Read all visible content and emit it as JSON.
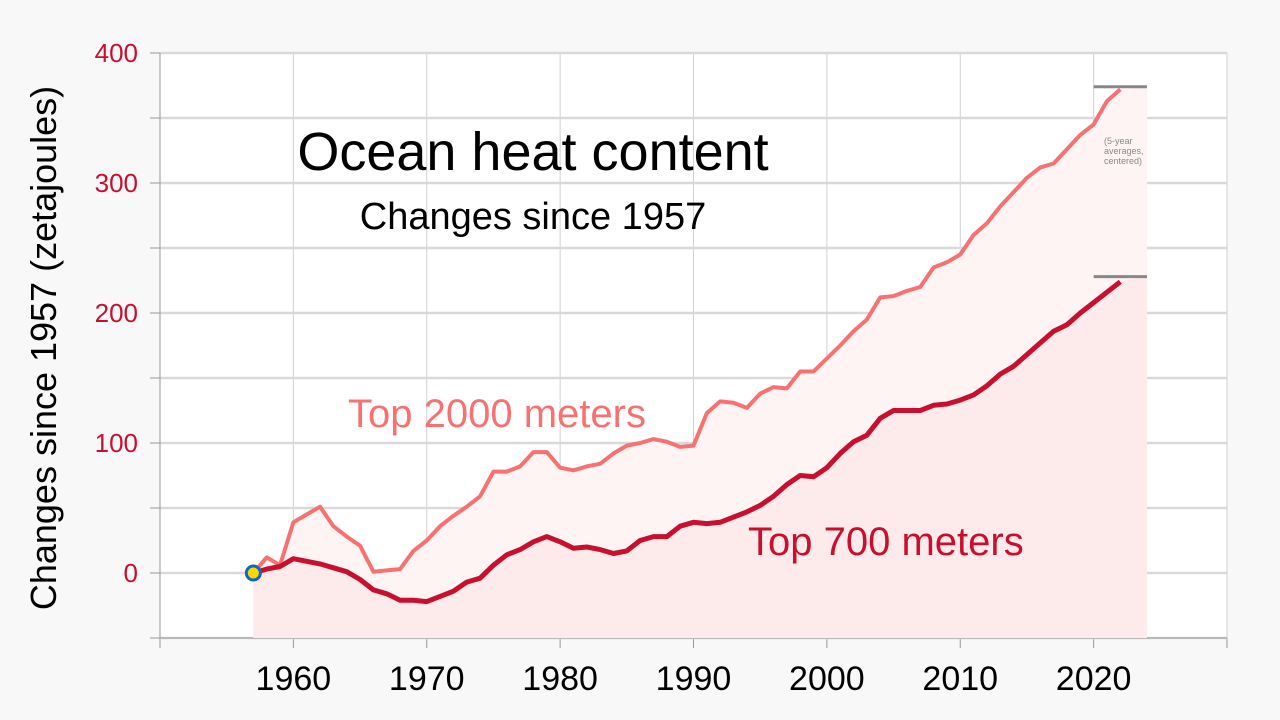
{
  "chart_data": {
    "type": "line",
    "title": "Ocean heat content",
    "subtitle": "Changes since 1957",
    "ylabel": "Changes since 1957 (zetajoules)",
    "xlabel": "",
    "xlim": [
      1950,
      2030
    ],
    "ylim": [
      -50,
      400
    ],
    "x_ticks": [
      1960,
      1970,
      1980,
      1990,
      2000,
      2010,
      2020
    ],
    "y_ticks": [
      0,
      100,
      200,
      300,
      400
    ],
    "y_tick_color": "#c8102e",
    "grid": true,
    "legend": "inline labels",
    "annotation": "(5-year averages, centered)",
    "series": [
      {
        "name": "Top 2000 meters",
        "color": "#f87171",
        "x": [
          1957,
          1958,
          1959,
          1960,
          1961,
          1962,
          1963,
          1964,
          1965,
          1966,
          1967,
          1968,
          1969,
          1970,
          1971,
          1972,
          1973,
          1974,
          1975,
          1976,
          1977,
          1978,
          1979,
          1980,
          1981,
          1982,
          1983,
          1984,
          1985,
          1986,
          1987,
          1988,
          1989,
          1990,
          1991,
          1992,
          1993,
          1994,
          1995,
          1996,
          1997,
          1998,
          1999,
          2000,
          2001,
          2002,
          2003,
          2004,
          2005,
          2006,
          2007,
          2008,
          2009,
          2010,
          2011,
          2012,
          2013,
          2014,
          2015,
          2016,
          2017,
          2018,
          2019,
          2020,
          2021,
          2022
        ],
        "values": [
          0,
          12,
          6,
          39,
          45,
          51,
          36,
          28,
          21,
          1,
          2,
          3,
          17,
          25,
          36,
          44,
          51,
          59,
          78,
          78,
          82,
          93,
          93,
          81,
          79,
          82,
          84,
          92,
          98,
          100,
          103,
          101,
          97,
          98,
          123,
          132,
          131,
          127,
          138,
          143,
          142,
          155,
          155,
          165,
          175,
          186,
          195,
          212,
          213,
          217,
          220,
          235,
          239,
          245,
          260,
          269,
          282,
          293,
          304,
          312,
          315,
          326,
          337,
          345,
          363,
          372
        ],
        "end_marker": 374
      },
      {
        "name": "Top 700 meters",
        "color": "#c8102e",
        "x": [
          1957,
          1958,
          1959,
          1960,
          1961,
          1962,
          1963,
          1964,
          1965,
          1966,
          1967,
          1968,
          1969,
          1970,
          1971,
          1972,
          1973,
          1974,
          1975,
          1976,
          1977,
          1978,
          1979,
          1980,
          1981,
          1982,
          1983,
          1984,
          1985,
          1986,
          1987,
          1988,
          1989,
          1990,
          1991,
          1992,
          1993,
          1994,
          1995,
          1996,
          1997,
          1998,
          1999,
          2000,
          2001,
          2002,
          2003,
          2004,
          2005,
          2006,
          2007,
          2008,
          2009,
          2010,
          2011,
          2012,
          2013,
          2014,
          2015,
          2016,
          2017,
          2018,
          2019,
          2020,
          2021,
          2022
        ],
        "values": [
          0,
          3,
          5,
          11,
          9,
          7,
          4,
          1,
          -5,
          -13,
          -16,
          -21,
          -21,
          -22,
          -18,
          -14,
          -7,
          -4,
          6,
          14,
          18,
          24,
          28,
          24,
          19,
          20,
          18,
          15,
          17,
          25,
          28,
          28,
          36,
          39,
          38,
          39,
          43,
          47,
          52,
          59,
          68,
          75,
          74,
          81,
          92,
          101,
          106,
          119,
          125,
          125,
          125,
          129,
          130,
          133,
          137,
          144,
          153,
          159,
          168,
          177,
          186,
          191,
          200,
          208,
          216,
          224
        ],
        "end_marker": 228
      }
    ],
    "start_marker": {
      "x": 1957,
      "y": 0
    }
  }
}
